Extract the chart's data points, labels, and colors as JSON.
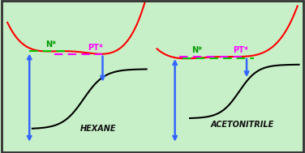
{
  "bg_color": "#c8f0c8",
  "border_color": "#333333",
  "panel1_label": "HEXANE",
  "panel2_label": "ACETONITRILE",
  "N_label": "N*",
  "PT_label": "PT*",
  "curve_color": "#ff0000",
  "arrow_color": "#3366ff",
  "dashed_green": "#00cc00",
  "dashed_magenta": "#ff00ff",
  "label_green_color": "#009900",
  "label_magenta_color": "#ff00ff",
  "s_curve_color": "#000000",
  "label_fontsize": 7,
  "panel_label_fontsize": 7
}
